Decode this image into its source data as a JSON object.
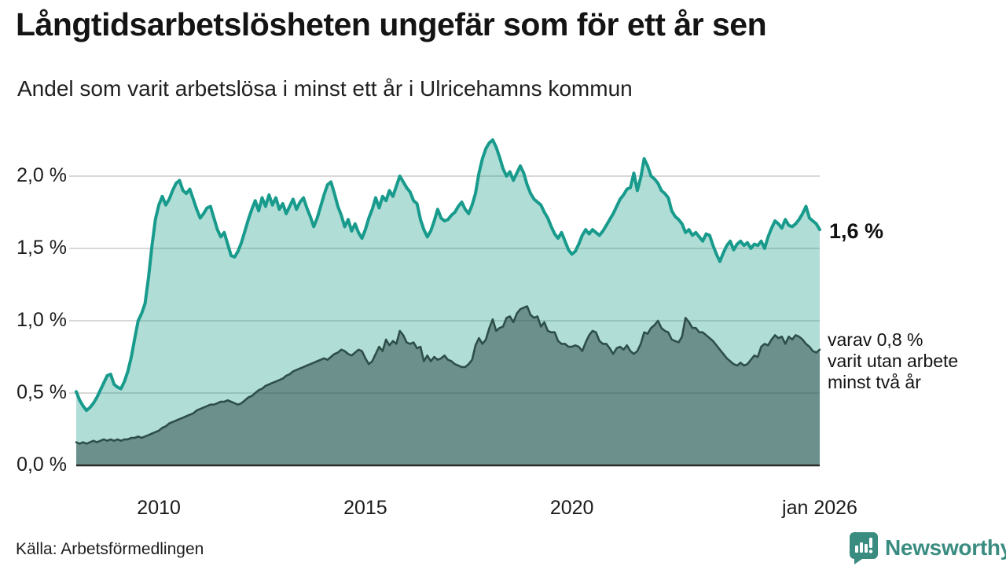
{
  "header": {
    "title": "Långtidsarbetslösheten ungefär som för ett år sen",
    "subtitle": "Andel som varit arbetslösa i minst ett år i Ulricehamns kommun"
  },
  "chart_data": {
    "type": "area",
    "title": "Långtidsarbetslösheten ungefär som för ett år sen",
    "subtitle": "Andel som varit arbetslösa i minst ett år i Ulricehamns kommun",
    "unit": "%",
    "x_unit": "month",
    "x_range": [
      "jan 2008",
      "jan 2026"
    ],
    "ylim": [
      0.0,
      2.3
    ],
    "grid": true,
    "y_ticks": [
      {
        "label": "2,0 %",
        "value": 2.0
      },
      {
        "label": "1,5 %",
        "value": 1.5
      },
      {
        "label": "1,0 %",
        "value": 1.0
      },
      {
        "label": "0,5 %",
        "value": 0.5
      },
      {
        "label": "0,0 %",
        "value": 0.0
      }
    ],
    "x_ticks": [
      {
        "label": "2010",
        "month_index": 24
      },
      {
        "label": "2015",
        "month_index": 84
      },
      {
        "label": "2020",
        "month_index": 144
      },
      {
        "label": "jan 2026",
        "month_index": 216
      }
    ],
    "series": [
      {
        "name": "Arbetslösa minst ett år",
        "end_value_label": "1,6 %",
        "line_color": "#189b8c",
        "fill_color": "rgba(26,155,139,0.34)",
        "values": [
          0.51,
          0.45,
          0.41,
          0.38,
          0.4,
          0.43,
          0.47,
          0.52,
          0.57,
          0.62,
          0.63,
          0.56,
          0.54,
          0.53,
          0.58,
          0.65,
          0.75,
          0.88,
          1.0,
          1.05,
          1.12,
          1.3,
          1.52,
          1.7,
          1.8,
          1.86,
          1.8,
          1.84,
          1.9,
          1.95,
          1.97,
          1.9,
          1.88,
          1.91,
          1.84,
          1.77,
          1.71,
          1.74,
          1.78,
          1.79,
          1.71,
          1.63,
          1.58,
          1.61,
          1.53,
          1.45,
          1.44,
          1.48,
          1.54,
          1.62,
          1.7,
          1.77,
          1.83,
          1.76,
          1.85,
          1.79,
          1.87,
          1.8,
          1.85,
          1.77,
          1.81,
          1.74,
          1.79,
          1.84,
          1.77,
          1.82,
          1.85,
          1.78,
          1.72,
          1.65,
          1.71,
          1.79,
          1.87,
          1.94,
          1.96,
          1.88,
          1.79,
          1.73,
          1.65,
          1.7,
          1.62,
          1.67,
          1.61,
          1.57,
          1.63,
          1.71,
          1.77,
          1.85,
          1.78,
          1.86,
          1.83,
          1.9,
          1.86,
          1.93,
          2.0,
          1.96,
          1.92,
          1.89,
          1.83,
          1.81,
          1.7,
          1.63,
          1.58,
          1.62,
          1.69,
          1.77,
          1.71,
          1.69,
          1.7,
          1.73,
          1.75,
          1.79,
          1.82,
          1.77,
          1.74,
          1.8,
          1.88,
          2.02,
          2.12,
          2.19,
          2.23,
          2.25,
          2.2,
          2.13,
          2.05,
          2.0,
          2.03,
          1.97,
          2.02,
          2.07,
          2.02,
          1.94,
          1.88,
          1.84,
          1.82,
          1.8,
          1.75,
          1.71,
          1.65,
          1.6,
          1.57,
          1.61,
          1.55,
          1.49,
          1.46,
          1.48,
          1.53,
          1.59,
          1.63,
          1.6,
          1.63,
          1.61,
          1.59,
          1.62,
          1.66,
          1.7,
          1.74,
          1.79,
          1.84,
          1.87,
          1.91,
          1.92,
          2.02,
          1.9,
          1.99,
          2.12,
          2.07,
          2.0,
          1.98,
          1.95,
          1.9,
          1.88,
          1.85,
          1.76,
          1.72,
          1.7,
          1.67,
          1.61,
          1.63,
          1.59,
          1.61,
          1.58,
          1.55,
          1.6,
          1.59,
          1.52,
          1.46,
          1.41,
          1.47,
          1.52,
          1.55,
          1.49,
          1.53,
          1.55,
          1.52,
          1.54,
          1.5,
          1.53,
          1.52,
          1.55,
          1.5,
          1.58,
          1.64,
          1.69,
          1.67,
          1.64,
          1.7,
          1.66,
          1.65,
          1.67,
          1.7,
          1.74,
          1.79,
          1.71,
          1.69,
          1.67,
          1.63
        ]
      },
      {
        "name": "varav arbetslösa minst två år",
        "end_value_label": "0,8 %",
        "line_color": "#2e4f49",
        "fill_color": "rgba(40,70,65,0.50)",
        "values": [
          0.16,
          0.15,
          0.16,
          0.15,
          0.16,
          0.17,
          0.16,
          0.17,
          0.18,
          0.17,
          0.18,
          0.17,
          0.18,
          0.17,
          0.18,
          0.18,
          0.19,
          0.19,
          0.2,
          0.19,
          0.2,
          0.21,
          0.22,
          0.23,
          0.24,
          0.26,
          0.27,
          0.29,
          0.3,
          0.31,
          0.32,
          0.33,
          0.34,
          0.35,
          0.36,
          0.38,
          0.39,
          0.4,
          0.41,
          0.42,
          0.42,
          0.43,
          0.44,
          0.44,
          0.45,
          0.44,
          0.43,
          0.42,
          0.43,
          0.45,
          0.47,
          0.48,
          0.5,
          0.52,
          0.53,
          0.55,
          0.56,
          0.57,
          0.58,
          0.59,
          0.6,
          0.62,
          0.63,
          0.65,
          0.66,
          0.67,
          0.68,
          0.69,
          0.7,
          0.71,
          0.72,
          0.73,
          0.74,
          0.73,
          0.75,
          0.77,
          0.78,
          0.8,
          0.79,
          0.77,
          0.76,
          0.78,
          0.8,
          0.79,
          0.74,
          0.7,
          0.72,
          0.77,
          0.82,
          0.79,
          0.87,
          0.83,
          0.86,
          0.84,
          0.93,
          0.9,
          0.85,
          0.84,
          0.85,
          0.81,
          0.82,
          0.72,
          0.76,
          0.72,
          0.75,
          0.73,
          0.74,
          0.76,
          0.73,
          0.72,
          0.7,
          0.69,
          0.68,
          0.68,
          0.7,
          0.73,
          0.83,
          0.88,
          0.84,
          0.87,
          0.95,
          1.01,
          0.93,
          0.95,
          0.96,
          1.02,
          1.03,
          0.99,
          1.05,
          1.08,
          1.09,
          1.1,
          1.04,
          1.02,
          1.03,
          0.96,
          0.99,
          0.93,
          0.92,
          0.92,
          0.86,
          0.84,
          0.84,
          0.82,
          0.82,
          0.83,
          0.82,
          0.79,
          0.85,
          0.9,
          0.93,
          0.92,
          0.86,
          0.84,
          0.84,
          0.81,
          0.77,
          0.81,
          0.82,
          0.8,
          0.83,
          0.79,
          0.77,
          0.79,
          0.84,
          0.92,
          0.91,
          0.95,
          0.97,
          1.0,
          0.95,
          0.93,
          0.92,
          0.87,
          0.86,
          0.85,
          0.89,
          1.02,
          0.99,
          0.95,
          0.95,
          0.92,
          0.92,
          0.9,
          0.88,
          0.86,
          0.83,
          0.8,
          0.77,
          0.74,
          0.72,
          0.7,
          0.69,
          0.71,
          0.69,
          0.7,
          0.73,
          0.76,
          0.75,
          0.82,
          0.84,
          0.83,
          0.87,
          0.9,
          0.88,
          0.89,
          0.84,
          0.89,
          0.87,
          0.9,
          0.89,
          0.87,
          0.84,
          0.82,
          0.79,
          0.78,
          0.8
        ]
      }
    ],
    "annotations": {
      "primary_value": "1,6 %",
      "secondary_lines": [
        "varav 0,8 %",
        "varit utan arbete",
        "minst två år"
      ]
    },
    "legend_position": "right-annotations",
    "colors": {
      "gridline": "#d8d8d8",
      "baseline": "#2b2b2b",
      "brand_teal": "#3a8c80"
    }
  },
  "footer": {
    "source": "Källa: Arbetsförmedlingen",
    "brand": "Newsworthy"
  }
}
